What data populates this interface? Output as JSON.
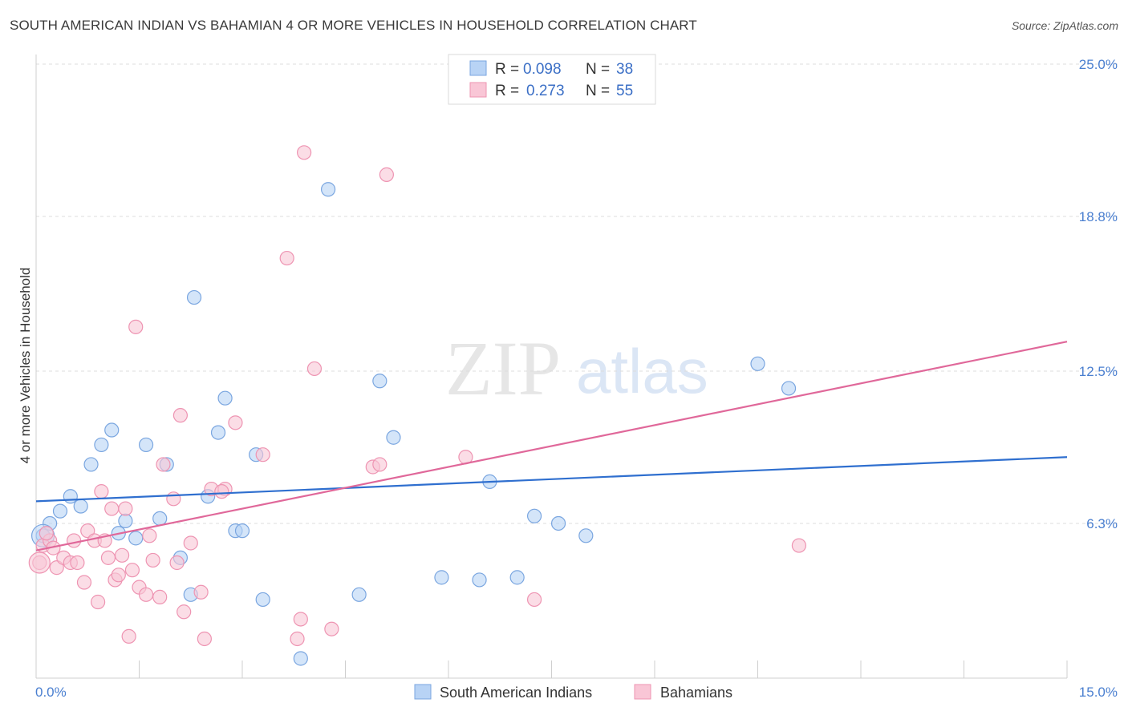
{
  "title": "SOUTH AMERICAN INDIAN VS BAHAMIAN 4 OR MORE VEHICLES IN HOUSEHOLD CORRELATION CHART",
  "source": "Source: ZipAtlas.com",
  "watermark": {
    "zip": "ZIP",
    "atlas": "atlas"
  },
  "colors": {
    "blue_fill": "#b8d3f5",
    "blue_stroke": "#7aa6e0",
    "blue_line": "#2f6fcf",
    "pink_fill": "#f9c6d6",
    "pink_stroke": "#ee94b2",
    "pink_line": "#e0689a",
    "tick_label": "#4a7fd0",
    "grid": "#dcdcdc"
  },
  "legend": {
    "rows": [
      {
        "r_label": "R =",
        "r_value": "0.098",
        "n_label": "N =",
        "n_value": "38",
        "series": "blue"
      },
      {
        "r_label": "R =",
        "r_value": "0.273",
        "n_label": "N =",
        "n_value": "55",
        "series": "pink"
      }
    ]
  },
  "chart_data": {
    "type": "scatter",
    "title": "SOUTH AMERICAN INDIAN VS BAHAMIAN 4 OR MORE VEHICLES IN HOUSEHOLD CORRELATION CHART",
    "xlabel": "",
    "ylabel": "4 or more Vehicles in Household",
    "xlim": [
      0,
      15
    ],
    "ylim": [
      0,
      25
    ],
    "x_tick_labels": [
      "0.0%",
      "15.0%"
    ],
    "y_ticks": [
      6.3,
      12.5,
      18.8,
      25.0
    ],
    "y_tick_labels": [
      "6.3%",
      "12.5%",
      "18.8%",
      "25.0%"
    ],
    "grid": true,
    "legend_position": "top-center",
    "series": [
      {
        "name": "South American Indians",
        "color": "#b8d3f5",
        "trend": {
          "x": [
            0,
            15
          ],
          "y": [
            7.2,
            9.0
          ]
        },
        "points": [
          [
            0.1,
            5.8
          ],
          [
            0.2,
            6.3
          ],
          [
            0.35,
            6.8
          ],
          [
            0.5,
            7.4
          ],
          [
            0.65,
            7.0
          ],
          [
            0.8,
            8.7
          ],
          [
            0.95,
            9.5
          ],
          [
            1.1,
            10.1
          ],
          [
            1.2,
            5.9
          ],
          [
            1.3,
            6.4
          ],
          [
            1.45,
            5.7
          ],
          [
            1.6,
            9.5
          ],
          [
            1.8,
            6.5
          ],
          [
            1.9,
            8.7
          ],
          [
            2.1,
            4.9
          ],
          [
            2.25,
            3.4
          ],
          [
            2.3,
            15.5
          ],
          [
            2.5,
            7.4
          ],
          [
            2.65,
            10.0
          ],
          [
            2.75,
            11.4
          ],
          [
            2.9,
            6.0
          ],
          [
            3.0,
            6.0
          ],
          [
            3.2,
            9.1
          ],
          [
            3.3,
            3.2
          ],
          [
            3.85,
            0.8
          ],
          [
            4.25,
            19.9
          ],
          [
            4.7,
            3.4
          ],
          [
            5.0,
            12.1
          ],
          [
            5.2,
            9.8
          ],
          [
            5.9,
            4.1
          ],
          [
            6.45,
            4.0
          ],
          [
            6.6,
            8.0
          ],
          [
            7.0,
            4.1
          ],
          [
            7.25,
            6.6
          ],
          [
            7.6,
            6.3
          ],
          [
            8.0,
            5.8
          ],
          [
            10.5,
            12.8
          ],
          [
            10.95,
            11.8
          ]
        ]
      },
      {
        "name": "Bahamians",
        "color": "#f9c6d6",
        "trend": {
          "x": [
            0,
            15
          ],
          "y": [
            5.2,
            13.7
          ]
        },
        "points": [
          [
            0.05,
            4.7
          ],
          [
            0.1,
            5.4
          ],
          [
            0.2,
            5.6
          ],
          [
            0.25,
            5.3
          ],
          [
            0.3,
            4.5
          ],
          [
            0.4,
            4.9
          ],
          [
            0.5,
            4.7
          ],
          [
            0.55,
            5.6
          ],
          [
            0.6,
            4.7
          ],
          [
            0.7,
            3.9
          ],
          [
            0.75,
            6.0
          ],
          [
            0.85,
            5.6
          ],
          [
            0.9,
            3.1
          ],
          [
            0.95,
            7.6
          ],
          [
            1.0,
            5.6
          ],
          [
            1.05,
            4.9
          ],
          [
            1.1,
            6.9
          ],
          [
            1.15,
            4.0
          ],
          [
            1.2,
            4.2
          ],
          [
            1.3,
            6.9
          ],
          [
            1.35,
            1.7
          ],
          [
            1.4,
            4.4
          ],
          [
            1.45,
            14.3
          ],
          [
            1.5,
            3.7
          ],
          [
            1.6,
            3.4
          ],
          [
            1.65,
            5.8
          ],
          [
            1.7,
            4.8
          ],
          [
            1.8,
            3.3
          ],
          [
            1.85,
            8.7
          ],
          [
            2.0,
            7.3
          ],
          [
            2.05,
            4.7
          ],
          [
            2.1,
            10.7
          ],
          [
            2.15,
            2.7
          ],
          [
            2.25,
            5.5
          ],
          [
            2.4,
            3.5
          ],
          [
            2.45,
            1.6
          ],
          [
            2.55,
            7.7
          ],
          [
            2.75,
            7.7
          ],
          [
            2.9,
            10.4
          ],
          [
            3.3,
            9.1
          ],
          [
            3.65,
            17.1
          ],
          [
            3.8,
            1.6
          ],
          [
            3.85,
            2.4
          ],
          [
            3.9,
            21.4
          ],
          [
            4.05,
            12.6
          ],
          [
            4.3,
            2.0
          ],
          [
            4.9,
            8.6
          ],
          [
            5.0,
            8.7
          ],
          [
            5.1,
            20.5
          ],
          [
            6.25,
            9.0
          ],
          [
            7.25,
            3.2
          ],
          [
            11.1,
            5.4
          ],
          [
            0.15,
            5.9
          ],
          [
            1.25,
            5.0
          ],
          [
            2.7,
            7.6
          ]
        ]
      }
    ]
  },
  "bottom_legend": [
    {
      "label": "South American Indians",
      "series": "blue"
    },
    {
      "label": "Bahamians",
      "series": "pink"
    }
  ]
}
